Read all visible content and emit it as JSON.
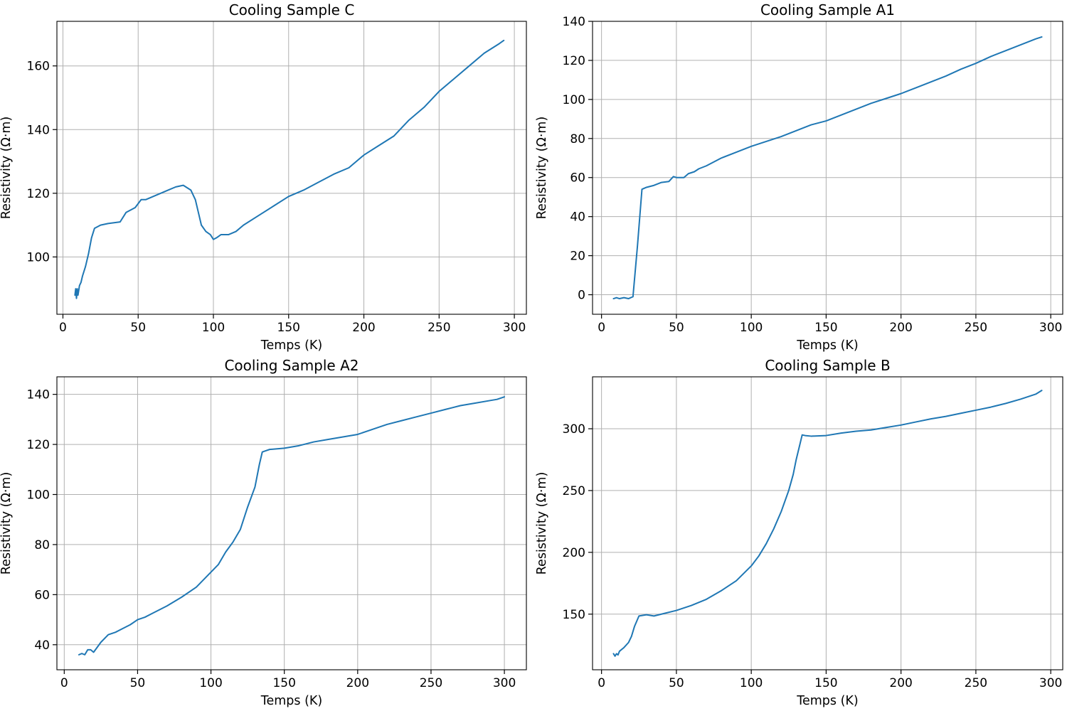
{
  "colors": {
    "series": "#1f77b4",
    "grid": "#b0b0b0"
  },
  "chart_data": [
    {
      "type": "line",
      "title": "Cooling Sample C",
      "xlabel": "Temps (K)",
      "ylabel": "Resistivity (Ω·m)",
      "xlim": [
        -4,
        308
      ],
      "ylim": [
        82,
        174
      ],
      "xticks": [
        0,
        50,
        100,
        150,
        200,
        250,
        300
      ],
      "yticks": [
        100,
        120,
        140,
        160
      ],
      "grid": true,
      "series": [
        {
          "x": [
            8,
            8.5,
            9,
            9.5,
            10,
            11,
            12,
            13,
            15,
            17,
            19,
            21,
            25,
            30,
            38,
            42,
            48,
            52,
            55,
            60,
            65,
            70,
            75,
            80,
            85,
            88,
            90,
            92,
            95,
            98,
            100,
            102,
            105,
            110,
            115,
            120,
            130,
            140,
            150,
            160,
            170,
            180,
            190,
            200,
            210,
            220,
            230,
            240,
            250,
            260,
            270,
            280,
            290,
            293
          ],
          "y": [
            88,
            90,
            87,
            90,
            88,
            91,
            92,
            94,
            97,
            101,
            106,
            109,
            110,
            110.5,
            111,
            114,
            115.5,
            118,
            118,
            119,
            120,
            121,
            122,
            122.5,
            121,
            118,
            114,
            110,
            108,
            107,
            105.5,
            106,
            107,
            107,
            108,
            110,
            113,
            116,
            119,
            121,
            123.5,
            126,
            128,
            132,
            135,
            138,
            143,
            147,
            152,
            156,
            160,
            164,
            167,
            168
          ]
        }
      ]
    },
    {
      "type": "line",
      "title": "Cooling Sample A1",
      "xlabel": "Temps (K)",
      "ylabel": "Resistivity (Ω·m)",
      "xlim": [
        -6,
        308
      ],
      "ylim": [
        -10,
        140
      ],
      "xticks": [
        0,
        50,
        100,
        150,
        200,
        250,
        300
      ],
      "yticks": [
        0,
        20,
        40,
        60,
        80,
        100,
        120,
        140
      ],
      "grid": true,
      "series": [
        {
          "x": [
            8,
            10,
            12,
            15,
            18,
            21,
            24,
            27,
            30,
            35,
            40,
            45,
            48,
            50,
            55,
            58,
            62,
            65,
            70,
            80,
            90,
            100,
            110,
            120,
            130,
            140,
            150,
            160,
            170,
            180,
            190,
            200,
            210,
            220,
            230,
            240,
            250,
            260,
            270,
            280,
            290,
            294
          ],
          "y": [
            -2,
            -1.5,
            -2,
            -1.5,
            -2,
            -1,
            25,
            54,
            55,
            56,
            57.5,
            58,
            60.5,
            60,
            60,
            62,
            63,
            64.5,
            66,
            70,
            73,
            76,
            78.5,
            81,
            84,
            87,
            89,
            92,
            95,
            98,
            100.5,
            103,
            106,
            109,
            112,
            115.5,
            118.5,
            122,
            125,
            128,
            131,
            132
          ]
        }
      ]
    },
    {
      "type": "line",
      "title": "Cooling Sample A2",
      "xlabel": "Temps (K)",
      "ylabel": "Resistivity (Ω·m)",
      "xlim": [
        -5,
        315
      ],
      "ylim": [
        30,
        147
      ],
      "xticks": [
        0,
        50,
        100,
        150,
        200,
        250,
        300
      ],
      "yticks": [
        40,
        60,
        80,
        100,
        120,
        140
      ],
      "grid": true,
      "series": [
        {
          "x": [
            10,
            12,
            14,
            16,
            18,
            20,
            25,
            30,
            35,
            40,
            45,
            50,
            55,
            60,
            70,
            80,
            90,
            100,
            105,
            110,
            115,
            120,
            125,
            130,
            133,
            135,
            140,
            150,
            160,
            170,
            180,
            190,
            200,
            210,
            220,
            230,
            240,
            250,
            260,
            270,
            280,
            290,
            295,
            300
          ],
          "y": [
            36,
            36.5,
            36,
            38,
            38,
            37,
            41,
            44,
            45,
            46.5,
            48,
            50,
            51,
            52.5,
            55.5,
            59,
            63,
            69,
            72,
            77,
            81,
            86,
            95,
            103,
            112,
            117,
            118,
            118.5,
            119.5,
            121,
            122,
            123,
            124,
            126,
            128,
            129.5,
            131,
            132.5,
            134,
            135.5,
            136.5,
            137.5,
            138,
            139
          ]
        }
      ]
    },
    {
      "type": "line",
      "title": "Cooling Sample B",
      "xlabel": "Temps (K)",
      "ylabel": "Resistivity (Ω·m)",
      "xlim": [
        -6,
        308
      ],
      "ylim": [
        105,
        342
      ],
      "xticks": [
        0,
        50,
        100,
        150,
        200,
        250,
        300
      ],
      "yticks": [
        150,
        200,
        250,
        300
      ],
      "grid": true,
      "series": [
        {
          "x": [
            8,
            9,
            10,
            11,
            12,
            15,
            18,
            20,
            22,
            25,
            30,
            35,
            40,
            50,
            60,
            70,
            80,
            90,
            100,
            105,
            110,
            115,
            120,
            125,
            128,
            130,
            132,
            134,
            136,
            140,
            150,
            160,
            170,
            180,
            190,
            200,
            210,
            220,
            230,
            240,
            250,
            260,
            270,
            280,
            290,
            294
          ],
          "y": [
            118,
            116,
            118,
            117,
            120,
            123,
            127,
            132,
            140,
            148.5,
            149.5,
            148.5,
            150,
            153,
            157,
            162,
            169,
            177,
            189,
            197,
            207,
            219,
            233,
            250,
            263,
            275,
            285,
            295,
            294.5,
            294,
            294.5,
            296.5,
            298,
            299,
            301,
            303,
            305.5,
            308,
            310,
            312.5,
            315,
            317.5,
            320.5,
            324,
            328,
            331
          ]
        }
      ]
    }
  ]
}
